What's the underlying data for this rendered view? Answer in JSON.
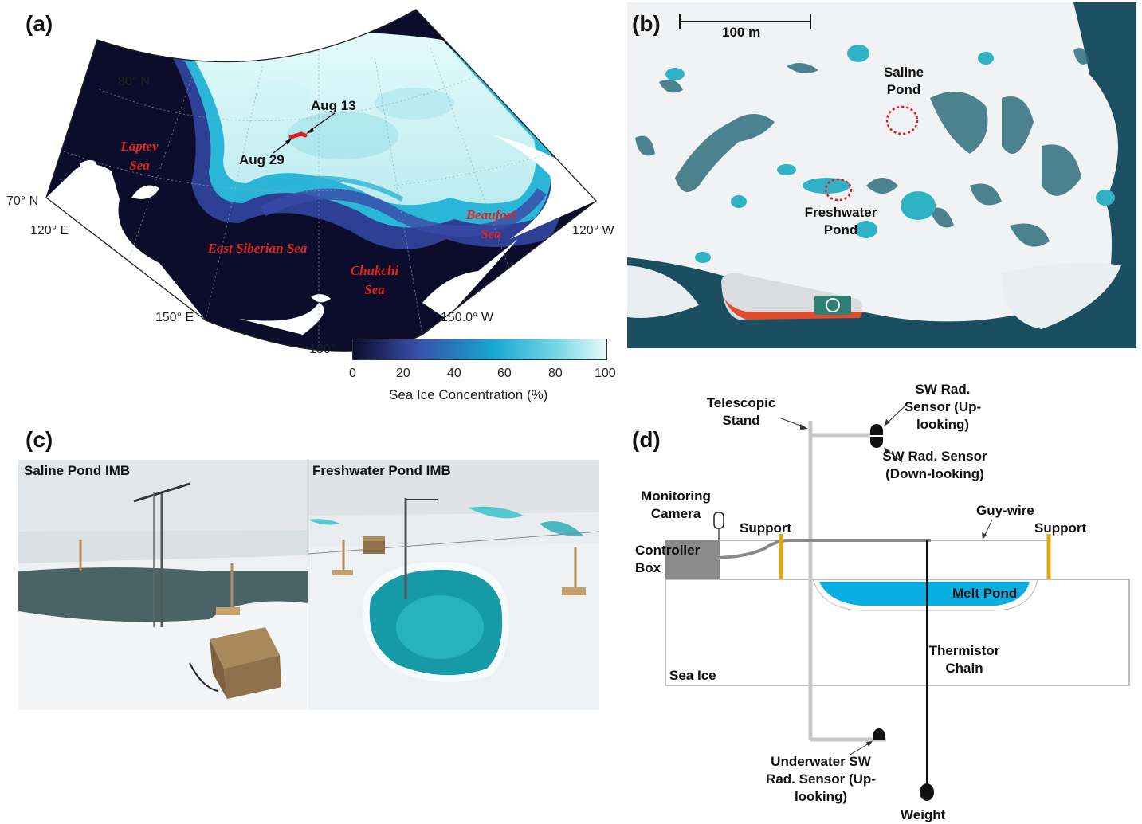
{
  "panels": {
    "a": "(a)",
    "b": "(b)",
    "c": "(c)",
    "d": "(d)"
  },
  "map": {
    "lat_labels": [
      "80° N",
      "70° N"
    ],
    "lon_labels": [
      "120° E",
      "150° E",
      "180°",
      "150.0° W",
      "120° W"
    ],
    "seas": [
      "Laptev Sea",
      "East Siberian Sea",
      "Chukchi Sea",
      "Beaufort Sea"
    ],
    "track_start": "Aug 13",
    "track_end": "Aug 29",
    "colorbar": {
      "ticks": [
        "0",
        "20",
        "40",
        "60",
        "80",
        "100"
      ],
      "label": "Sea Ice Concentration (%)",
      "range": [
        0,
        100
      ],
      "colors": [
        "#0a0d2a",
        "#3a4ea8",
        "#18a6d2",
        "#e8fbfb"
      ]
    }
  },
  "aerial": {
    "scale": "100 m",
    "saline_pond": "Saline Pond",
    "freshwater_pond": "Freshwater Pond"
  },
  "photos": {
    "left_title": "Saline Pond IMB",
    "right_title": "Freshwater Pond IMB"
  },
  "schematic": {
    "telescopic_stand": "Telescopic Stand",
    "sw_up": "SW Rad. Sensor (Up-looking)",
    "sw_down": "SW Rad. Sensor (Down-looking)",
    "camera": "Monitoring Camera",
    "support_left": "Support",
    "support_right": "Support",
    "guy_wire": "Guy-wire",
    "controller": "Controller Box",
    "melt_pond": "Melt Pond",
    "thermistor": "Thermistor Chain",
    "sea_ice": "Sea Ice",
    "underwater": "Underwater SW Rad. Sensor (Up-looking)",
    "weight": "Weight"
  }
}
